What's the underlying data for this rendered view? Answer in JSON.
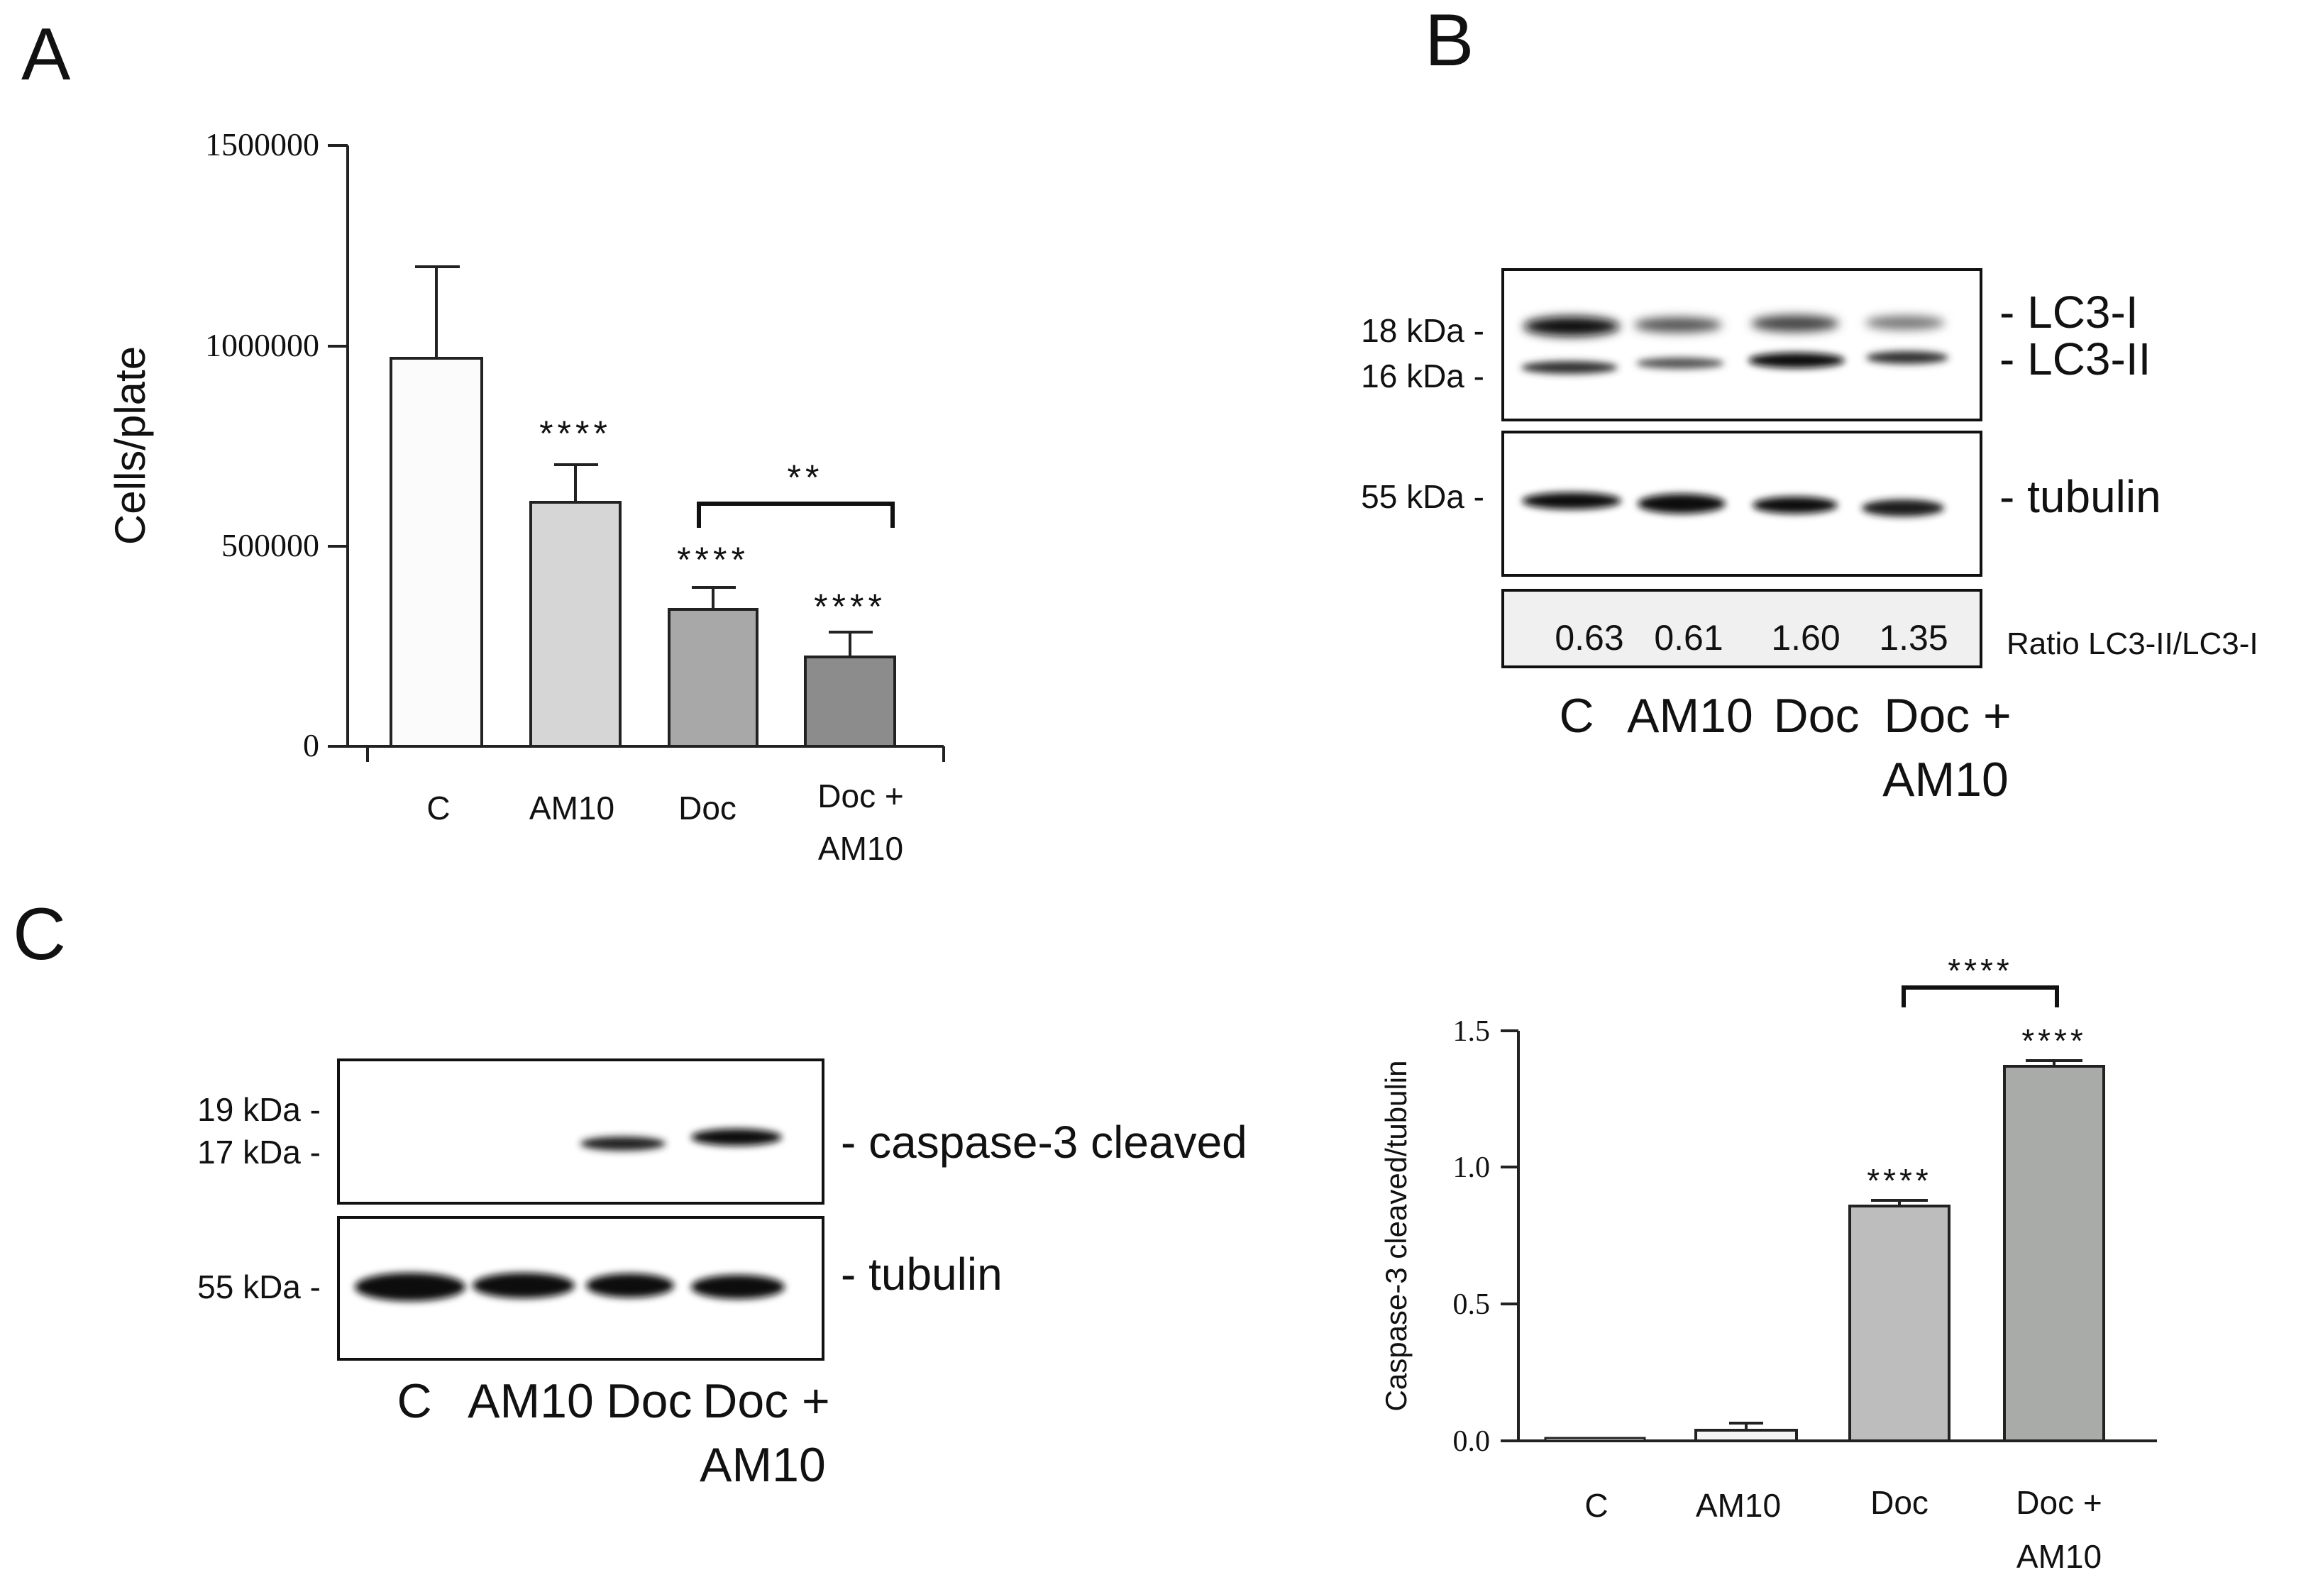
{
  "panels": {
    "A": {
      "letter": "A"
    },
    "B": {
      "letter": "B"
    },
    "C": {
      "letter": "C"
    }
  },
  "chart_data": [
    {
      "panel": "A",
      "type": "bar",
      "title": "",
      "xlabel": "",
      "ylabel": "Cells/plate",
      "ylim": [
        0,
        1500000
      ],
      "yticks": [
        "0",
        "500000",
        "1000000",
        "1500000"
      ],
      "categories": [
        [
          "C"
        ],
        [
          "AM10"
        ],
        [
          "Doc"
        ],
        [
          "Doc +",
          "AM10"
        ]
      ],
      "values": [
        965000,
        610000,
        340000,
        222000
      ],
      "errors": [
        235000,
        90000,
        55000,
        60000
      ],
      "significance": [
        "",
        "****",
        "****",
        "****"
      ],
      "bracket": {
        "from": 2,
        "to": 3,
        "label": "**"
      },
      "bar_colors": [
        "#fbfbfb",
        "#d6d6d6",
        "#a8a8a8",
        "#8c8c8c"
      ]
    },
    {
      "panel": "C",
      "type": "bar",
      "title": "",
      "xlabel": "",
      "ylabel": "Caspase-3 cleaved/tubulin",
      "ylim": [
        0,
        1.5
      ],
      "yticks": [
        "0.0",
        "0.5",
        "1.0",
        "1.5"
      ],
      "categories": [
        [
          "C"
        ],
        [
          "AM10"
        ],
        [
          "Doc"
        ],
        [
          "Doc +",
          "AM10"
        ]
      ],
      "values": [
        0.005,
        0.04,
        0.86,
        1.37
      ],
      "errors": [
        0.004,
        0.025,
        0.02,
        0.02
      ],
      "significance": [
        "",
        "",
        "****",
        "****"
      ],
      "bracket": {
        "from": 2,
        "to": 3,
        "label": "****"
      },
      "bar_colors": [
        "#f5f5f5",
        "#f5f5f5",
        "#bdbdbd",
        "#a9aba9"
      ]
    }
  ],
  "blot_B": {
    "markers": [
      "18 kDa -",
      "16 kDa -",
      "55 kDa -"
    ],
    "band_labels": [
      "- LC3-I",
      "- LC3-II",
      "- tubulin"
    ],
    "ratios": [
      "0.63",
      "0.61",
      "1.60",
      "1.35"
    ],
    "ratio_label": "Ratio LC3-II/LC3-I",
    "lanes": [
      "C",
      "AM10",
      "Doc",
      "Doc +",
      "AM10"
    ]
  },
  "blot_C": {
    "markers": [
      "19 kDa -",
      "17 kDa -",
      "55 kDa -"
    ],
    "band_labels": [
      "- caspase-3 cleaved",
      "- tubulin"
    ],
    "lanes": [
      "C",
      "AM10",
      "Doc",
      "Doc +",
      "AM10"
    ]
  }
}
